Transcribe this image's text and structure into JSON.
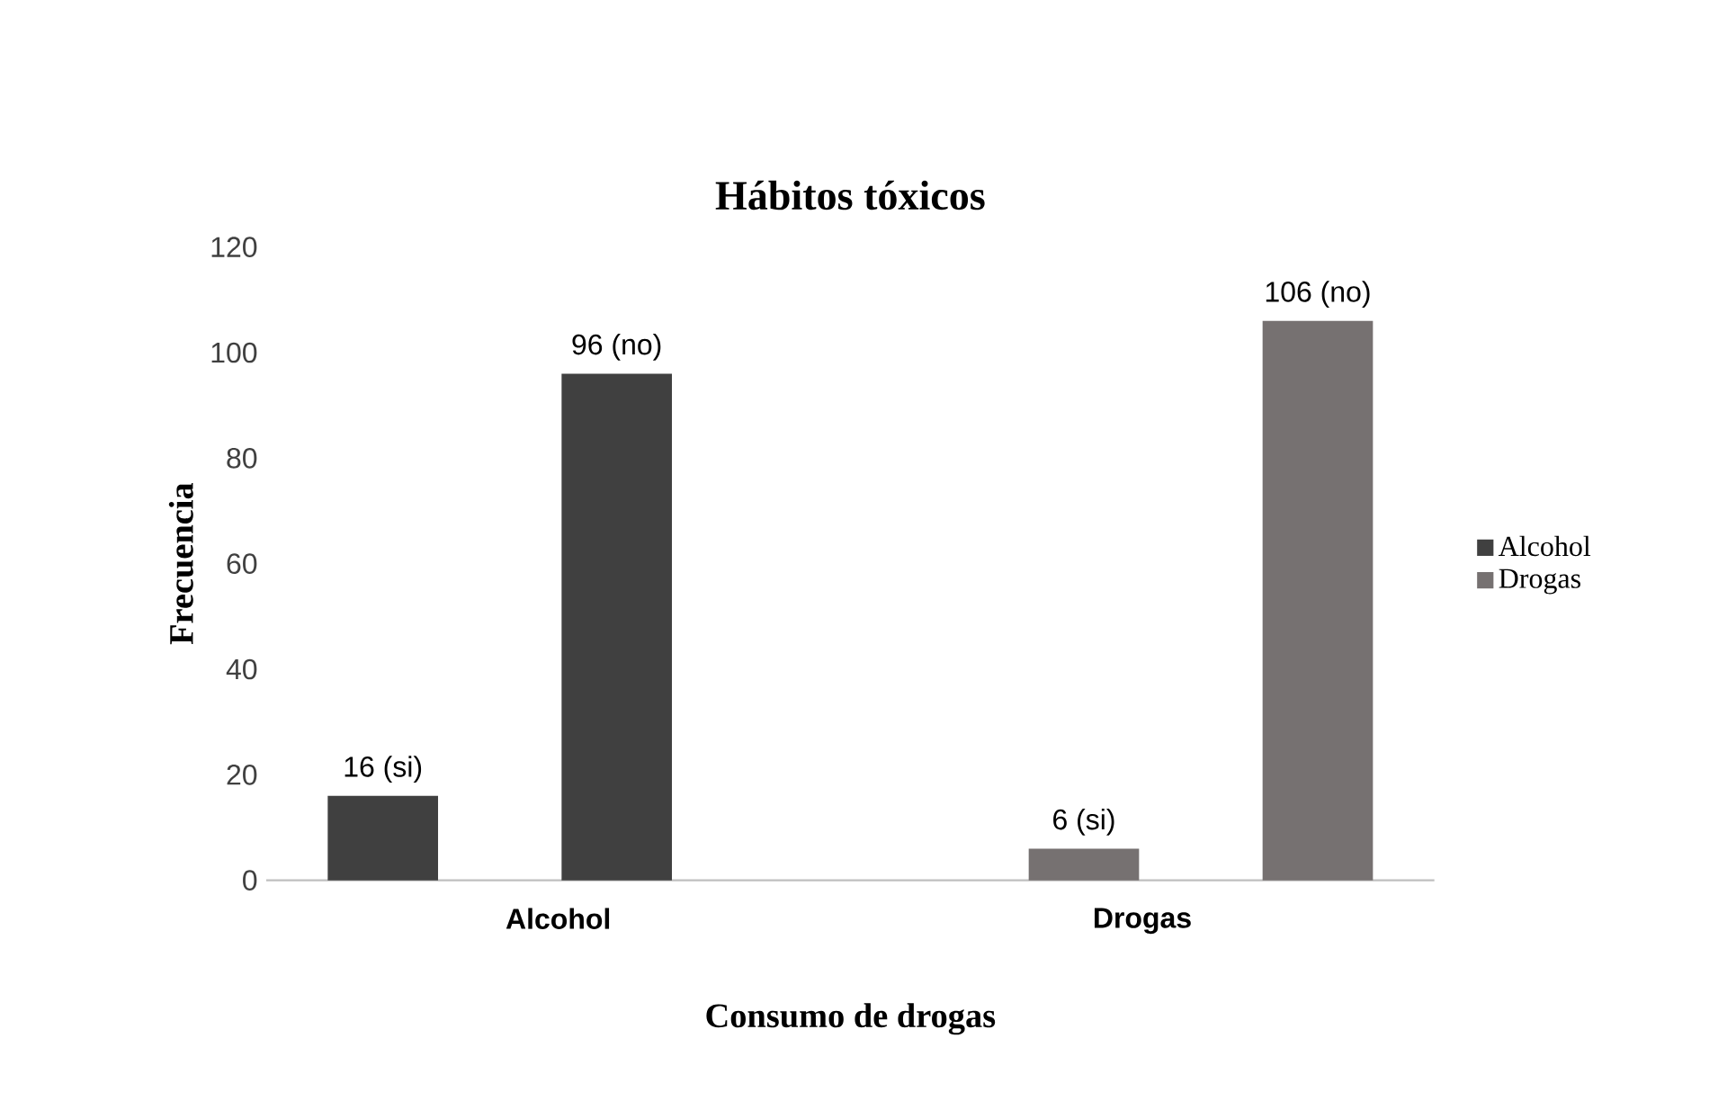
{
  "chart_data": {
    "type": "bar",
    "title": "Hábitos tóxicos",
    "xlabel": "Consumo de drogas",
    "ylabel": "Frecuencia",
    "categories": [
      "Alcohol",
      "Drogas"
    ],
    "series": [
      {
        "name": "Alcohol",
        "color": "#404040",
        "values": [
          16,
          null
        ],
        "value_labels": [
          "16 (si)",
          null
        ]
      },
      {
        "name": "Drogas",
        "color": "#767171",
        "values": [
          null,
          6
        ],
        "value_labels": [
          null,
          "6 (si)"
        ]
      },
      {
        "color": "#404040",
        "values": [
          96,
          null
        ],
        "value_labels": [
          "96 (no)",
          null
        ]
      },
      {
        "color": "#767171",
        "values": [
          null,
          106
        ],
        "value_labels": [
          null,
          "106 (no)"
        ]
      }
    ],
    "ylim": [
      0,
      120
    ],
    "yticks": [
      0,
      20,
      40,
      60,
      80,
      100,
      120
    ],
    "legend": "right"
  }
}
